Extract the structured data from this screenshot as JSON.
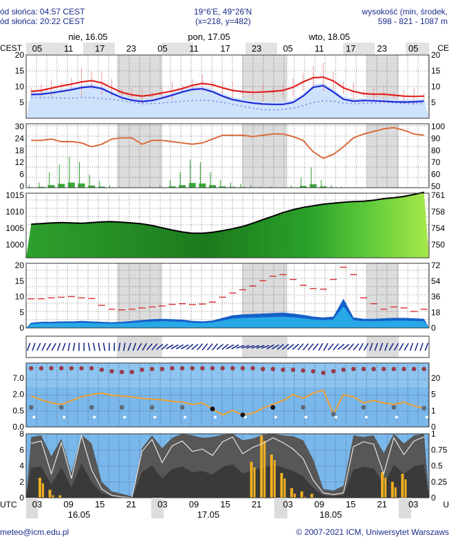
{
  "header": {
    "sunrise": "ód słońca: 04:57 CEST",
    "sunset": "ód słońca: 20:22 CEST",
    "coords": "19°6'E, 49°26'N",
    "grid": "(x=218, y=482)",
    "elev_label": "wysokość (min, środek,",
    "elev_values": "598 - 821 - 1087 m"
  },
  "footer": {
    "email": "meteo@icm.edu.pl",
    "copyright": "© 2007-2021 ICM, Uniwersytet Warszaws"
  },
  "chart_data": {
    "type": "line",
    "top_axis": {
      "unit_left": "CEST",
      "unit_right": "CE",
      "ticks": [
        "05",
        "11",
        "17",
        "23",
        "05",
        "11",
        "17",
        "23",
        "05",
        "11",
        "17",
        "23",
        "05"
      ],
      "days": [
        "nie, 16.05",
        "pon, 17.05",
        "wto, 18.05"
      ]
    },
    "bottom_axis": {
      "unit_left": "UTC",
      "unit_right": "U",
      "ticks": [
        "03",
        "09",
        "15",
        "21",
        "03",
        "09",
        "15",
        "21",
        "03",
        "09",
        "15",
        "21",
        "03"
      ],
      "days": [
        "16.05",
        "17.05",
        "18.05"
      ]
    },
    "temperature": {
      "yticks": [
        "20",
        "15",
        "10",
        "5"
      ],
      "ylim": [
        0,
        20
      ],
      "max": [
        8.5,
        8.8,
        9.5,
        10.2,
        10.8,
        11.5,
        11.9,
        11.2,
        9.6,
        8.2,
        7.4,
        7.0,
        7.4,
        8.0,
        8.6,
        9.4,
        10.4,
        11.0,
        10.6,
        9.6,
        8.8,
        8.4,
        8.2,
        8.3,
        8.5,
        8.8,
        9.8,
        11.5,
        12.8,
        13.0,
        11.8,
        9.6,
        8.5,
        7.8,
        7.6,
        7.6,
        7.3,
        7.0,
        6.9,
        7.0
      ],
      "mean": [
        7.5,
        7.6,
        8.0,
        8.5,
        9.0,
        9.7,
        10.0,
        9.4,
        7.9,
        6.5,
        5.7,
        5.3,
        5.6,
        6.4,
        7.3,
        8.3,
        9.1,
        9.3,
        8.4,
        7.0,
        5.9,
        5.3,
        4.8,
        4.5,
        4.4,
        4.4,
        5.0,
        7.0,
        9.8,
        10.3,
        8.3,
        6.0,
        5.4,
        5.6,
        5.5,
        5.4,
        5.2,
        5.1,
        5.2,
        5.4
      ],
      "dew": [
        6.6,
        6.5,
        6.5,
        6.4,
        6.3,
        6.6,
        6.5,
        6.2,
        6.0,
        5.6,
        5.0,
        4.7,
        4.6,
        4.8,
        5.1,
        5.4,
        5.6,
        5.7,
        5.5,
        5.0,
        4.4,
        3.8,
        3.2,
        2.7,
        2.6,
        2.8,
        3.2,
        4.0,
        5.0,
        5.5,
        5.4,
        4.8,
        4.6,
        4.7,
        4.8,
        5.0,
        4.9,
        4.7,
        4.6,
        4.7
      ]
    },
    "precipitation": {
      "yticks_left": [
        "30",
        "24",
        "18",
        "12",
        "6",
        "0"
      ],
      "yticks_right": [
        "100",
        "90",
        "80",
        "70",
        "60",
        "50"
      ],
      "ylim": [
        0,
        30
      ],
      "humidity": [
        87,
        87,
        88,
        86,
        86,
        85,
        82,
        84,
        88,
        89,
        89,
        84,
        87,
        87,
        86,
        85,
        84,
        85,
        88,
        91,
        91,
        91,
        90,
        91,
        92,
        92,
        90,
        87,
        78,
        73,
        76,
        82,
        89,
        92,
        94,
        96,
        97,
        95,
        92,
        91
      ],
      "rain": [
        0.2,
        0.4,
        1.2,
        1.8,
        2.4,
        2.0,
        1.0,
        0.5,
        0.2,
        0.1,
        0.0,
        0.0,
        0.1,
        0.2,
        0.6,
        1.2,
        2.2,
        2.0,
        1.2,
        0.6,
        0.4,
        0.3,
        0.2,
        0.1,
        0.1,
        0.0,
        0.2,
        0.8,
        1.6,
        0.6,
        0.2,
        0.1,
        0.0,
        0.0,
        0.0,
        0.0,
        0.0,
        0.0,
        0.0,
        0.0
      ]
    },
    "pressure": {
      "yticks_left": [
        "1015",
        "1010",
        "1005",
        "1000"
      ],
      "yticks_right": [
        "761",
        "758",
        "754",
        "750"
      ],
      "ylim": [
        996,
        1016
      ],
      "values": [
        1006.4,
        1006.6,
        1006.8,
        1006.9,
        1006.8,
        1006.7,
        1006.9,
        1007.1,
        1007.2,
        1007.0,
        1006.8,
        1006.5,
        1006.0,
        1005.3,
        1004.6,
        1004.0,
        1003.6,
        1003.6,
        1003.9,
        1004.4,
        1005.0,
        1005.7,
        1006.7,
        1007.8,
        1008.9,
        1010.0,
        1010.9,
        1011.6,
        1012.1,
        1012.6,
        1012.9,
        1013.2,
        1013.4,
        1013.5,
        1013.8,
        1014.3,
        1014.6,
        1015.0,
        1015.6,
        1016.3
      ]
    },
    "wind": {
      "yticks_left": [
        "20",
        "15",
        "10",
        "5",
        "0"
      ],
      "yticks_right": [
        "72",
        "54",
        "36",
        "18",
        "0"
      ],
      "ylim": [
        0,
        20
      ],
      "mean": [
        1.2,
        1.4,
        1.4,
        1.5,
        1.5,
        1.6,
        1.5,
        1.4,
        1.3,
        1.4,
        1.6,
        1.8,
        2.0,
        2.1,
        2.0,
        1.9,
        1.6,
        1.5,
        1.7,
        2.3,
        2.9,
        3.1,
        3.2,
        3.3,
        3.4,
        3.5,
        3.3,
        3.0,
        2.6,
        2.4,
        2.6,
        6.7,
        2.4,
        2.1,
        2.1,
        2.2,
        2.3,
        2.3,
        2.2,
        2.1
      ],
      "gust": [
        9.0,
        9.0,
        9.3,
        9.5,
        9.7,
        9.3,
        9.1,
        7.0,
        5.8,
        5.6,
        5.8,
        6.2,
        6.5,
        6.8,
        7.3,
        7.5,
        7.2,
        7.4,
        8.0,
        9.5,
        10.8,
        11.8,
        13.0,
        14.6,
        16.0,
        16.5,
        15.0,
        13.2,
        12.2,
        12.0,
        15.0,
        18.8,
        16.5,
        9.3,
        7.5,
        5.8,
        6.5,
        6.2,
        5.1,
        5.8
      ]
    },
    "direction_deg": [
      200,
      205,
      210,
      200,
      190,
      180,
      170,
      170,
      180,
      190,
      200,
      210,
      220,
      230,
      240,
      240,
      230,
      220,
      220,
      230,
      240,
      250,
      250,
      250,
      240,
      230,
      230,
      220,
      220,
      210,
      220,
      230,
      220,
      210,
      200,
      200,
      210,
      210,
      200,
      200
    ],
    "visibility": {
      "yticks_left": [
        "7.0",
        "2.0",
        "0.5",
        "0.0"
      ],
      "yticks_right": [
        "20",
        "5",
        "1",
        "0"
      ],
      "ylim": [
        0,
        8.5
      ],
      "low": [
        7.8,
        7.8,
        7.8,
        7.8,
        7.8,
        7.8,
        7.8,
        7.6,
        7.4,
        7.3,
        7.3,
        7.6,
        7.7,
        7.7,
        7.8,
        7.8,
        7.8,
        7.8,
        7.8,
        7.8,
        7.8,
        7.8,
        7.8,
        7.7,
        7.7,
        7.6,
        7.6,
        7.5,
        7.4,
        7.2,
        7.4,
        7.6,
        7.7,
        7.7,
        7.7,
        7.7,
        7.7,
        7.7,
        7.7,
        7.7
      ],
      "orange": [
        4.1,
        3.6,
        3.2,
        3.0,
        3.5,
        4.0,
        4.3,
        4.5,
        4.2,
        4.1,
        4.0,
        3.8,
        3.7,
        3.6,
        3.4,
        3.3,
        3.0,
        3.2,
        2.4,
        1.6,
        2.2,
        1.6,
        1.8,
        2.5,
        3.0,
        3.5,
        4.3,
        3.8,
        4.5,
        4.9,
        1.7,
        4.3,
        4.0,
        3.2,
        3.5,
        3.2,
        3.0,
        3.3,
        2.8,
        2.5
      ]
    },
    "cloud": {
      "yticks_left": [
        "8",
        "6",
        "4",
        "2",
        "0"
      ],
      "yticks_right": [
        "1",
        "0.75",
        "0.5",
        "0.25",
        "0"
      ],
      "ylim": [
        0,
        8
      ],
      "total": [
        7.6,
        7.8,
        5.2,
        7.4,
        3.1,
        7.9,
        6.8,
        2.0,
        0.8,
        0.5,
        0.2,
        6.2,
        7.8,
        6.2,
        7.5,
        8.0,
        7.8,
        7.5,
        7.6,
        7.9,
        8.0,
        7.2,
        7.4,
        7.9,
        8.0,
        7.8,
        7.7,
        7.2,
        4.8,
        1.1,
        0.9,
        1.5,
        7.8,
        7.6,
        7.8,
        5.6,
        8.0,
        6.8,
        7.8,
        8.0
      ],
      "line": [
        6.8,
        7.1,
        3.0,
        6.9,
        2.4,
        7.8,
        3.5,
        1.1,
        0.3,
        0.1,
        0.0,
        5.8,
        7.3,
        4.4,
        6.5,
        7.1,
        5.8,
        6.1,
        5.3,
        7.0,
        7.6,
        5.5,
        6.3,
        6.8,
        7.5,
        6.9,
        6.1,
        4.9,
        2.2,
        0.6,
        0.4,
        0.6,
        6.4,
        7.0,
        6.7,
        3.0,
        7.5,
        5.4,
        7.1,
        7.6
      ],
      "sun_bars": [
        0.0,
        2.5,
        1.0,
        0.3,
        0.0,
        0.0,
        0.0,
        0.0,
        0.0,
        0.0,
        0.0,
        0.0,
        0.0,
        0.0,
        0.0,
        0.0,
        0.0,
        0.0,
        0.0,
        0.0,
        0.0,
        0.0,
        4.5,
        7.8,
        5.4,
        3.1,
        1.2,
        0.8,
        0.5,
        0.0,
        0.0,
        0.0,
        0.0,
        0.0,
        0.0,
        3.2,
        2.0,
        3.0,
        0.0,
        0.0
      ]
    }
  },
  "colors": {
    "night": "#dcdcdc",
    "tmax": "#e02020",
    "tmean": "#1c2ad6",
    "humidity": "#d96a3a",
    "rain": "#2a9a2a",
    "sky": "#7ab8ec",
    "cloud": "#575757",
    "sun": "#f0b020",
    "frame": "#1a2a8a"
  }
}
